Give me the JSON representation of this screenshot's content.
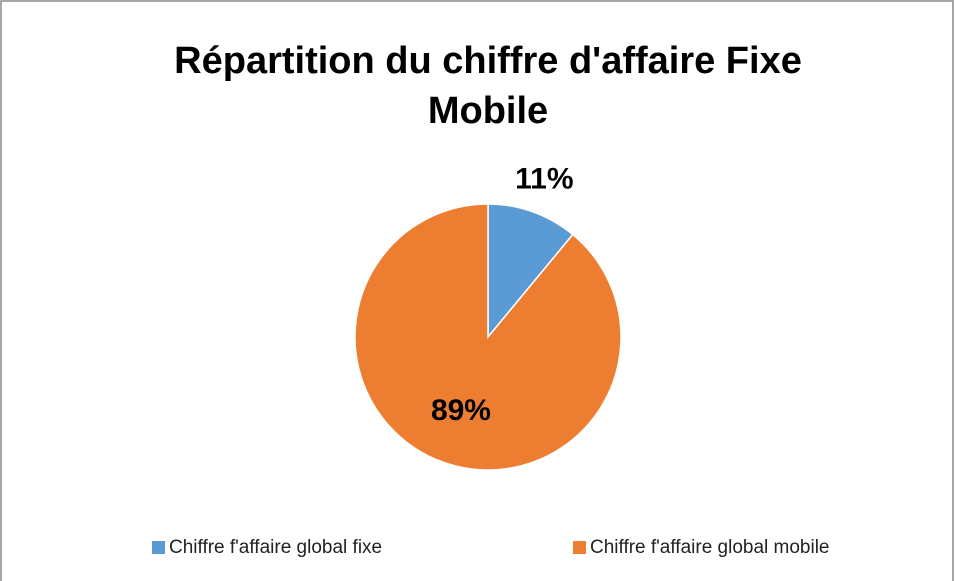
{
  "chart_data": {
    "type": "pie",
    "title": "Répartition du chiffre d'affaire Fixe Mobile",
    "categories": [
      "Chiffre f'affaire global fixe",
      "Chiffre f'affaire global mobile"
    ],
    "values": [
      11,
      89
    ],
    "value_labels": [
      "11%",
      "89%"
    ],
    "colors": [
      "#5b9bd5",
      "#ed7d31"
    ],
    "legend": "bottom"
  }
}
